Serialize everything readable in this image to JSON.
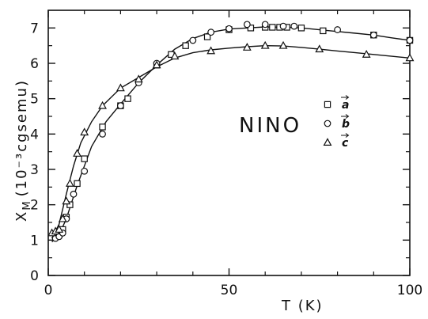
{
  "chart_data": {
    "type": "scatter",
    "xlabel": "T (K)",
    "ylabel_main": "X",
    "ylabel_sub": "M",
    "ylabel_unit": "(10⁻³cgsemu)",
    "xlim": [
      0,
      100
    ],
    "ylim": [
      0,
      7.5
    ],
    "xticks": [
      0,
      50,
      100
    ],
    "yticks": [
      0,
      1,
      2,
      3,
      4,
      5,
      6,
      7
    ],
    "grid": false,
    "annotation": "NINO",
    "legend_position": "right",
    "series": [
      {
        "name": "a",
        "marker": "square",
        "points": [
          [
            2,
            1.1
          ],
          [
            3,
            1.15
          ],
          [
            4,
            1.3
          ],
          [
            5,
            1.65
          ],
          [
            6,
            2.0
          ],
          [
            8,
            2.6
          ],
          [
            10,
            3.3
          ],
          [
            15,
            4.2
          ],
          [
            20,
            4.8
          ],
          [
            22,
            5.0
          ],
          [
            30,
            5.95
          ],
          [
            34,
            6.25
          ],
          [
            38,
            6.5
          ],
          [
            44,
            6.75
          ],
          [
            50,
            6.95
          ],
          [
            56,
            7.0
          ],
          [
            60,
            7.02
          ],
          [
            62,
            7.02
          ],
          [
            64,
            7.02
          ],
          [
            66,
            7.02
          ],
          [
            70,
            7.0
          ],
          [
            76,
            6.92
          ],
          [
            90,
            6.8
          ],
          [
            100,
            6.65
          ]
        ],
        "fit": [
          [
            1,
            0.95
          ],
          [
            3,
            1.15
          ],
          [
            5,
            1.6
          ],
          [
            8,
            2.55
          ],
          [
            12,
            3.65
          ],
          [
            16,
            4.35
          ],
          [
            20,
            4.85
          ],
          [
            25,
            5.45
          ],
          [
            30,
            5.95
          ],
          [
            35,
            6.4
          ],
          [
            40,
            6.7
          ],
          [
            45,
            6.88
          ],
          [
            50,
            6.97
          ],
          [
            55,
            7.0
          ],
          [
            60,
            7.03
          ],
          [
            65,
            7.02
          ],
          [
            70,
            7.0
          ],
          [
            75,
            6.95
          ],
          [
            80,
            6.9
          ],
          [
            85,
            6.85
          ],
          [
            90,
            6.8
          ],
          [
            95,
            6.72
          ],
          [
            100,
            6.65
          ]
        ]
      },
      {
        "name": "b",
        "marker": "circle",
        "points": [
          [
            2,
            1.05
          ],
          [
            3,
            1.1
          ],
          [
            4,
            1.2
          ],
          [
            5,
            1.6
          ],
          [
            7,
            2.3
          ],
          [
            10,
            2.95
          ],
          [
            15,
            4.0
          ],
          [
            20,
            4.8
          ],
          [
            25,
            5.45
          ],
          [
            30,
            6.0
          ],
          [
            40,
            6.65
          ],
          [
            45,
            6.88
          ],
          [
            50,
            6.98
          ],
          [
            55,
            7.1
          ],
          [
            60,
            7.1
          ],
          [
            65,
            7.05
          ],
          [
            68,
            7.05
          ],
          [
            80,
            6.95
          ],
          [
            90,
            6.8
          ],
          [
            100,
            6.65
          ]
        ],
        "fit": []
      },
      {
        "name": "c",
        "marker": "triangle",
        "points": [
          [
            1,
            1.2
          ],
          [
            2,
            1.25
          ],
          [
            3,
            1.3
          ],
          [
            4,
            1.6
          ],
          [
            5,
            2.1
          ],
          [
            6,
            2.6
          ],
          [
            8,
            3.45
          ],
          [
            10,
            4.05
          ],
          [
            15,
            4.8
          ],
          [
            20,
            5.3
          ],
          [
            25,
            5.55
          ],
          [
            30,
            5.95
          ],
          [
            35,
            6.2
          ],
          [
            45,
            6.35
          ],
          [
            55,
            6.45
          ],
          [
            60,
            6.5
          ],
          [
            65,
            6.5
          ],
          [
            75,
            6.4
          ],
          [
            88,
            6.25
          ],
          [
            100,
            6.15
          ]
        ],
        "fit": [
          [
            1,
            1.05
          ],
          [
            3,
            1.45
          ],
          [
            5,
            2.3
          ],
          [
            7,
            3.1
          ],
          [
            9,
            3.75
          ],
          [
            12,
            4.35
          ],
          [
            15,
            4.8
          ],
          [
            20,
            5.3
          ],
          [
            25,
            5.6
          ],
          [
            30,
            5.9
          ],
          [
            35,
            6.15
          ],
          [
            40,
            6.3
          ],
          [
            45,
            6.38
          ],
          [
            50,
            6.43
          ],
          [
            55,
            6.47
          ],
          [
            60,
            6.5
          ],
          [
            65,
            6.49
          ],
          [
            70,
            6.45
          ],
          [
            75,
            6.4
          ],
          [
            80,
            6.35
          ],
          [
            85,
            6.3
          ],
          [
            90,
            6.25
          ],
          [
            95,
            6.2
          ],
          [
            100,
            6.15
          ]
        ]
      }
    ]
  }
}
